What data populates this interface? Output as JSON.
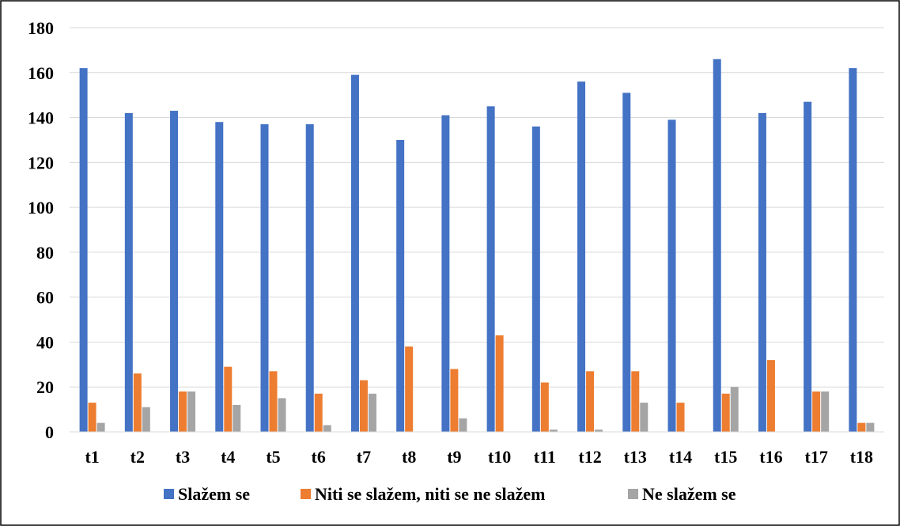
{
  "chart_data": {
    "type": "bar",
    "title": "",
    "xlabel": "",
    "ylabel": "",
    "ylim": [
      0,
      180
    ],
    "yticks": [
      0,
      20,
      40,
      60,
      80,
      100,
      120,
      140,
      160,
      180
    ],
    "grid": true,
    "legend_position": "bottom",
    "categories": [
      "t1",
      "t2",
      "t3",
      "t4",
      "t5",
      "t6",
      "t7",
      "t8",
      "t9",
      "t10",
      "t11",
      "t12",
      "t13",
      "t14",
      "t15",
      "t16",
      "t17",
      "t18"
    ],
    "series": [
      {
        "name": "Slažem se",
        "color": "#4472C4",
        "values": [
          162,
          142,
          143,
          138,
          137,
          137,
          159,
          130,
          141,
          145,
          136,
          156,
          151,
          139,
          166,
          142,
          147,
          162
        ]
      },
      {
        "name": "Niti se slažem, niti se ne slažem",
        "color": "#ED7D31",
        "values": [
          13,
          26,
          18,
          29,
          27,
          17,
          23,
          38,
          28,
          43,
          22,
          27,
          27,
          13,
          17,
          32,
          18,
          4
        ]
      },
      {
        "name": "Ne slažem se",
        "color": "#A5A5A5",
        "values": [
          4,
          11,
          18,
          12,
          15,
          3,
          17,
          0,
          6,
          0,
          1,
          1,
          13,
          0,
          20,
          0,
          18,
          4
        ]
      }
    ]
  }
}
